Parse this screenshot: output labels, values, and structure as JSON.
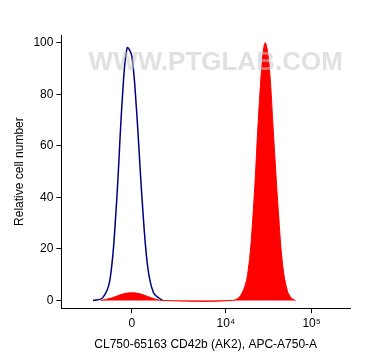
{
  "chart_data": {
    "type": "line",
    "x_label": "CL750-65163 CD42b (AK2), APC-A750-A",
    "y_label": "Relative cell number",
    "annotations": [
      "WWW.PTGLAB.COM"
    ],
    "xlim": [
      -5200,
      280000
    ],
    "xticks": [
      0,
      {
        "value": 10000,
        "label": "10⁴"
      },
      {
        "value": 100000,
        "label": "10⁵"
      }
    ],
    "ylim": [
      -3,
      103
    ],
    "yticks": [
      0,
      20,
      40,
      60,
      80,
      100
    ],
    "grid": false,
    "series": [
      {
        "type": "line",
        "color": "#00007f",
        "x": [
          -2000,
          -1400,
          -1000,
          -700,
          -400,
          -200,
          0,
          200,
          450,
          700,
          1000,
          1500
        ],
        "values": [
          0,
          1,
          8,
          35,
          80,
          98,
          95,
          75,
          40,
          14,
          3,
          0
        ]
      },
      {
        "type": "area",
        "color": "#ff0000",
        "x": [
          -1500,
          -900,
          -400,
          0,
          400,
          900,
          1500,
          12000,
          15000,
          18000,
          21000,
          24000,
          27000,
          29000,
          32000,
          36000,
          41000,
          46000,
          52000,
          58000,
          65000
        ],
        "values": [
          0,
          1,
          2.5,
          3,
          2.5,
          1,
          0,
          0,
          2,
          10,
          35,
          70,
          95,
          100,
          92,
          65,
          35,
          14,
          4,
          1,
          0
        ]
      }
    ]
  }
}
